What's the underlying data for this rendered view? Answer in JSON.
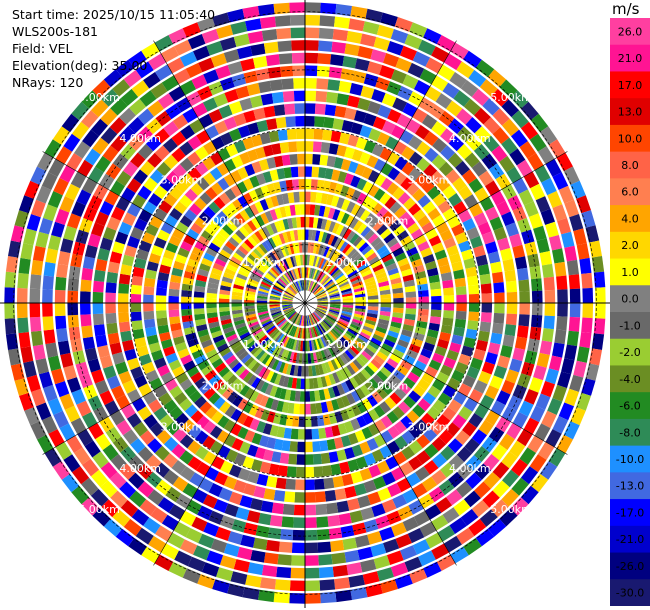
{
  "header": {
    "start_time": "Start time: 2025/10/15 11:05:40",
    "instrument": "WLS200s-181",
    "field": "Field: VEL",
    "elevation": "Elevation(deg): 35.00",
    "nrays": "NRays: 120"
  },
  "chart_data": {
    "type": "heatmap",
    "projection": "polar PPI",
    "field": "VEL",
    "units": "m/s",
    "range_rings_km": [
      1.0,
      2.0,
      3.0,
      4.0,
      5.0
    ],
    "range_ring_labels": [
      "1.00km",
      "2.00km",
      "3.00km",
      "4.00km",
      "5.00km"
    ],
    "max_range_km": 5.2,
    "rays": 120,
    "radial_gates": 24,
    "colorbar": {
      "unit": "m/s",
      "tick_labels": [
        "26.0",
        "21.0",
        "17.0",
        "13.0",
        "10.0",
        "8.0",
        "6.0",
        "4.0",
        "2.0",
        "1.0",
        "0.0",
        "-1.0",
        "-2.0",
        "-4.0",
        "-6.0",
        "-8.0",
        "-10.0",
        "-13.0",
        "-17.0",
        "-21.0",
        "-26.0",
        "-30.0"
      ],
      "colors": [
        "#ff3fa0",
        "#ff1493",
        "#ff0000",
        "#e00000",
        "#ff4500",
        "#ff6347",
        "#ff7f50",
        "#ffa500",
        "#ffd700",
        "#ffff00",
        "#808080",
        "#696969",
        "#9acd32",
        "#6b8e23",
        "#228b22",
        "#2e8b57",
        "#1e90ff",
        "#4169e1",
        "#0000ff",
        "#0000cd",
        "#000080",
        "#191970"
      ]
    },
    "grid": true
  }
}
